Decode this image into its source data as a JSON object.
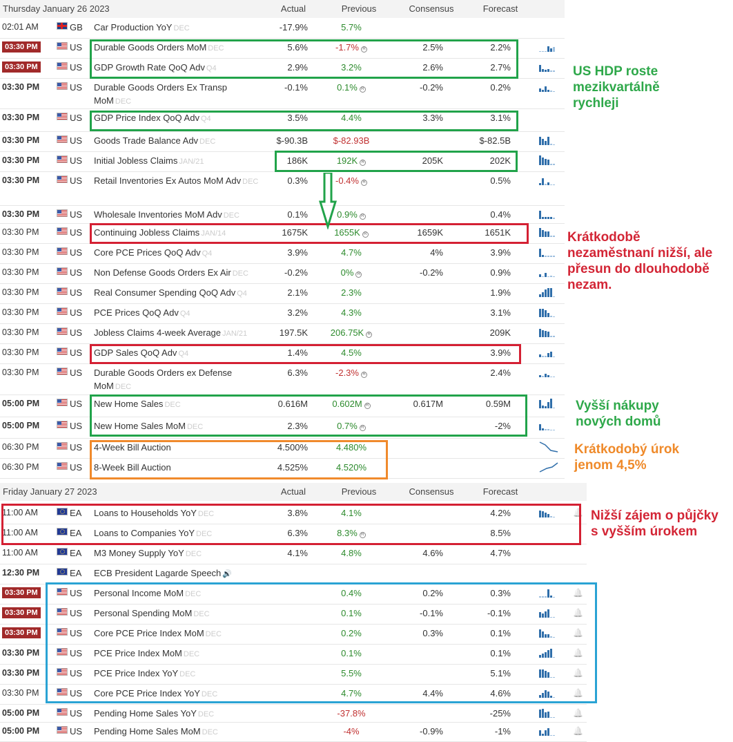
{
  "columns": {
    "actual": "Actual",
    "previous": "Previous",
    "consensus": "Consensus",
    "forecast": "Forecast"
  },
  "day1": {
    "date": "Thursday January 26 2023"
  },
  "day2": {
    "date": "Friday January 27 2023"
  },
  "rows": [
    {
      "time": "02:01 AM",
      "style": "plain",
      "flag": "gb",
      "country": "GB",
      "event": "Car Production YoY",
      "ref": "DEC",
      "actual": "-17.9%",
      "previous": "5.7%",
      "prev_color": "green",
      "rev": false,
      "consensus": "",
      "forecast": ""
    },
    {
      "time": "03:30 PM",
      "style": "hi",
      "flag": "us",
      "country": "US",
      "event": "Durable Goods Orders MoM",
      "ref": "DEC",
      "actual": "5.6%",
      "previous": "-1.7%",
      "prev_color": "red",
      "rev": true,
      "consensus": "2.5%",
      "forecast": "2.2%"
    },
    {
      "time": "03:30 PM",
      "style": "hi",
      "flag": "us",
      "country": "US",
      "event": "GDP Growth Rate QoQ Adv",
      "ref": "Q4",
      "actual": "2.9%",
      "previous": "3.2%",
      "prev_color": "green",
      "rev": false,
      "consensus": "2.6%",
      "forecast": "2.7%"
    },
    {
      "time": "03:30 PM",
      "style": "bold",
      "flag": "us",
      "country": "US",
      "event": "Durable Goods Orders Ex Transp MoM",
      "ref": "DEC",
      "actual": "-0.1%",
      "previous": "0.1%",
      "prev_color": "green",
      "rev": true,
      "consensus": "-0.2%",
      "forecast": "0.2%"
    },
    {
      "time": "03:30 PM",
      "style": "bold",
      "flag": "us",
      "country": "US",
      "event": "GDP Price Index QoQ Adv",
      "ref": "Q4",
      "actual": "3.5%",
      "previous": "4.4%",
      "prev_color": "green",
      "rev": false,
      "consensus": "3.3%",
      "forecast": "3.1%"
    },
    {
      "time": "03:30 PM",
      "style": "bold",
      "flag": "us",
      "country": "US",
      "event": "Goods Trade Balance Adv",
      "ref": "DEC",
      "actual": "$-90.3B",
      "previous": "$-82.93B",
      "prev_color": "red",
      "rev": false,
      "consensus": "",
      "forecast": "$-82.5B"
    },
    {
      "time": "03:30 PM",
      "style": "bold",
      "flag": "us",
      "country": "US",
      "event": "Initial Jobless Claims",
      "ref": "JAN/21",
      "actual": "186K",
      "previous": "192K",
      "prev_color": "green",
      "rev": true,
      "consensus": "205K",
      "forecast": "202K"
    },
    {
      "time": "03:30 PM",
      "style": "bold",
      "flag": "us",
      "country": "US",
      "event": "Retail Inventories Ex Autos MoM Adv",
      "ref": "DEC",
      "actual": "0.3%",
      "previous": "-0.4%",
      "prev_color": "red",
      "rev": true,
      "consensus": "",
      "forecast": "0.5%"
    },
    {
      "time": "03:30 PM",
      "style": "bold",
      "flag": "us",
      "country": "US",
      "event": "Wholesale Inventories MoM Adv",
      "ref": "DEC",
      "actual": "0.1%",
      "previous": "0.9%",
      "prev_color": "green",
      "rev": true,
      "consensus": "",
      "forecast": "0.4%"
    },
    {
      "time": "03:30 PM",
      "style": "plain",
      "flag": "us",
      "country": "US",
      "event": "Continuing Jobless Claims",
      "ref": "JAN/14",
      "actual": "1675K",
      "previous": "1655K",
      "prev_color": "green",
      "rev": true,
      "consensus": "1659K",
      "forecast": "1651K"
    },
    {
      "time": "03:30 PM",
      "style": "plain",
      "flag": "us",
      "country": "US",
      "event": "Core PCE Prices QoQ Adv",
      "ref": "Q4",
      "actual": "3.9%",
      "previous": "4.7%",
      "prev_color": "green",
      "rev": false,
      "consensus": "4%",
      "forecast": "3.9%"
    },
    {
      "time": "03:30 PM",
      "style": "plain",
      "flag": "us",
      "country": "US",
      "event": "Non Defense Goods Orders Ex Air",
      "ref": "DEC",
      "actual": "-0.2%",
      "previous": "0%",
      "prev_color": "green",
      "rev": true,
      "consensus": "-0.2%",
      "forecast": "0.9%"
    },
    {
      "time": "03:30 PM",
      "style": "plain",
      "flag": "us",
      "country": "US",
      "event": "Real Consumer Spending QoQ Adv",
      "ref": "Q4",
      "actual": "2.1%",
      "previous": "2.3%",
      "prev_color": "green",
      "rev": false,
      "consensus": "",
      "forecast": "1.9%"
    },
    {
      "time": "03:30 PM",
      "style": "plain",
      "flag": "us",
      "country": "US",
      "event": "PCE Prices QoQ Adv",
      "ref": "Q4",
      "actual": "3.2%",
      "previous": "4.3%",
      "prev_color": "green",
      "rev": false,
      "consensus": "",
      "forecast": "3.1%"
    },
    {
      "time": "03:30 PM",
      "style": "plain",
      "flag": "us",
      "country": "US",
      "event": "Jobless Claims 4-week Average",
      "ref": "JAN/21",
      "actual": "197.5K",
      "previous": "206.75K",
      "prev_color": "green",
      "rev": true,
      "consensus": "",
      "forecast": "209K"
    },
    {
      "time": "03:30 PM",
      "style": "plain",
      "flag": "us",
      "country": "US",
      "event": "GDP Sales QoQ Adv",
      "ref": "Q4",
      "actual": "1.4%",
      "previous": "4.5%",
      "prev_color": "green",
      "rev": false,
      "consensus": "",
      "forecast": "3.9%"
    },
    {
      "time": "03:30 PM",
      "style": "plain",
      "flag": "us",
      "country": "US",
      "event": "Durable Goods Orders ex Defense MoM",
      "ref": "DEC",
      "actual": "6.3%",
      "previous": "-2.3%",
      "prev_color": "red",
      "rev": true,
      "consensus": "",
      "forecast": "2.4%"
    },
    {
      "time": "05:00 PM",
      "style": "bold",
      "flag": "us",
      "country": "US",
      "event": "New Home Sales",
      "ref": "DEC",
      "actual": "0.616M",
      "previous": "0.602M",
      "prev_color": "green",
      "rev": true,
      "consensus": "0.617M",
      "forecast": "0.59M"
    },
    {
      "time": "05:00 PM",
      "style": "bold",
      "flag": "us",
      "country": "US",
      "event": "New Home Sales MoM",
      "ref": "DEC",
      "actual": "2.3%",
      "previous": "0.7%",
      "prev_color": "green",
      "rev": true,
      "consensus": "",
      "forecast": "-2%"
    },
    {
      "time": "06:30 PM",
      "style": "plain",
      "flag": "us",
      "country": "US",
      "event": "4-Week Bill Auction",
      "ref": "",
      "actual": "4.500%",
      "previous": "4.480%",
      "prev_color": "green",
      "rev": false,
      "consensus": "",
      "forecast": ""
    },
    {
      "time": "06:30 PM",
      "style": "plain",
      "flag": "us",
      "country": "US",
      "event": "8-Week Bill Auction",
      "ref": "",
      "actual": "4.525%",
      "previous": "4.520%",
      "prev_color": "green",
      "rev": false,
      "consensus": "",
      "forecast": ""
    },
    {
      "time": "11:00 AM",
      "style": "plain",
      "flag": "ea",
      "country": "EA",
      "event": "Loans to Households YoY",
      "ref": "DEC",
      "actual": "3.8%",
      "previous": "4.1%",
      "prev_color": "green",
      "rev": false,
      "consensus": "",
      "forecast": "4.2%"
    },
    {
      "time": "11:00 AM",
      "style": "plain",
      "flag": "ea",
      "country": "EA",
      "event": "Loans to Companies YoY",
      "ref": "DEC",
      "actual": "6.3%",
      "previous": "8.3%",
      "prev_color": "green",
      "rev": true,
      "consensus": "",
      "forecast": "8.5%"
    },
    {
      "time": "11:00 AM",
      "style": "plain",
      "flag": "ea",
      "country": "EA",
      "event": "M3 Money Supply YoY",
      "ref": "DEC",
      "actual": "4.1%",
      "previous": "4.8%",
      "prev_color": "green",
      "rev": false,
      "consensus": "4.6%",
      "forecast": "4.7%"
    },
    {
      "time": "12:30 PM",
      "style": "bold",
      "flag": "ea",
      "country": "EA",
      "event": "ECB President Lagarde Speech",
      "ref": "🔊",
      "actual": "",
      "previous": "",
      "prev_color": "green",
      "rev": false,
      "consensus": "",
      "forecast": ""
    },
    {
      "time": "03:30 PM",
      "style": "hi",
      "flag": "us",
      "country": "US",
      "event": "Personal Income MoM",
      "ref": "DEC",
      "actual": "",
      "previous": "0.4%",
      "prev_color": "green",
      "rev": false,
      "consensus": "0.2%",
      "forecast": "0.3%"
    },
    {
      "time": "03:30 PM",
      "style": "hi",
      "flag": "us",
      "country": "US",
      "event": "Personal Spending MoM",
      "ref": "DEC",
      "actual": "",
      "previous": "0.1%",
      "prev_color": "green",
      "rev": false,
      "consensus": "-0.1%",
      "forecast": "-0.1%"
    },
    {
      "time": "03:30 PM",
      "style": "hi",
      "flag": "us",
      "country": "US",
      "event": "Core PCE Price Index MoM",
      "ref": "DEC",
      "actual": "",
      "previous": "0.2%",
      "prev_color": "green",
      "rev": false,
      "consensus": "0.3%",
      "forecast": "0.1%"
    },
    {
      "time": "03:30 PM",
      "style": "bold",
      "flag": "us",
      "country": "US",
      "event": "PCE Price Index MoM",
      "ref": "DEC",
      "actual": "",
      "previous": "0.1%",
      "prev_color": "green",
      "rev": false,
      "consensus": "",
      "forecast": "0.1%"
    },
    {
      "time": "03:30 PM",
      "style": "bold",
      "flag": "us",
      "country": "US",
      "event": "PCE Price Index YoY",
      "ref": "DEC",
      "actual": "",
      "previous": "5.5%",
      "prev_color": "green",
      "rev": false,
      "consensus": "",
      "forecast": "5.1%"
    },
    {
      "time": "03:30 PM",
      "style": "plain",
      "flag": "us",
      "country": "US",
      "event": "Core PCE Price Index YoY",
      "ref": "DEC",
      "actual": "",
      "previous": "4.7%",
      "prev_color": "green",
      "rev": false,
      "consensus": "4.4%",
      "forecast": "4.6%"
    },
    {
      "time": "05:00 PM",
      "style": "bold",
      "flag": "us",
      "country": "US",
      "event": "Pending Home Sales YoY",
      "ref": "DEC",
      "actual": "",
      "previous": "-37.8%",
      "prev_color": "red",
      "rev": false,
      "consensus": "",
      "forecast": "-25%"
    },
    {
      "time": "05:00 PM",
      "style": "bold",
      "flag": "us",
      "country": "US",
      "event": "Pending Home Sales MoM",
      "ref": "DEC",
      "actual": "",
      "previous": "-4%",
      "prev_color": "red",
      "rev": false,
      "consensus": "-0.9%",
      "forecast": "-1%"
    }
  ],
  "annotations": {
    "gdp": "US HDP roste mezikvartálně rychleji",
    "jobless": "Krátkodobě nezaměstnaní nižší, ale přesun do dlouhodobě nezam.",
    "homes": "Vyšší nákupy nových domů",
    "rate": "Krátkodobý úrok jenom 4,5%",
    "loans": "Nižší zájem o půjčky s vyšším úrokem"
  },
  "colors": {
    "green_box": "#21a34a",
    "red_box": "#d42033",
    "orange_box": "#f08a2c",
    "blue_box": "#2aa3d4",
    "green_note": "#2ea84a",
    "red_note": "#d32535",
    "orange_note": "#ef8a2a"
  }
}
